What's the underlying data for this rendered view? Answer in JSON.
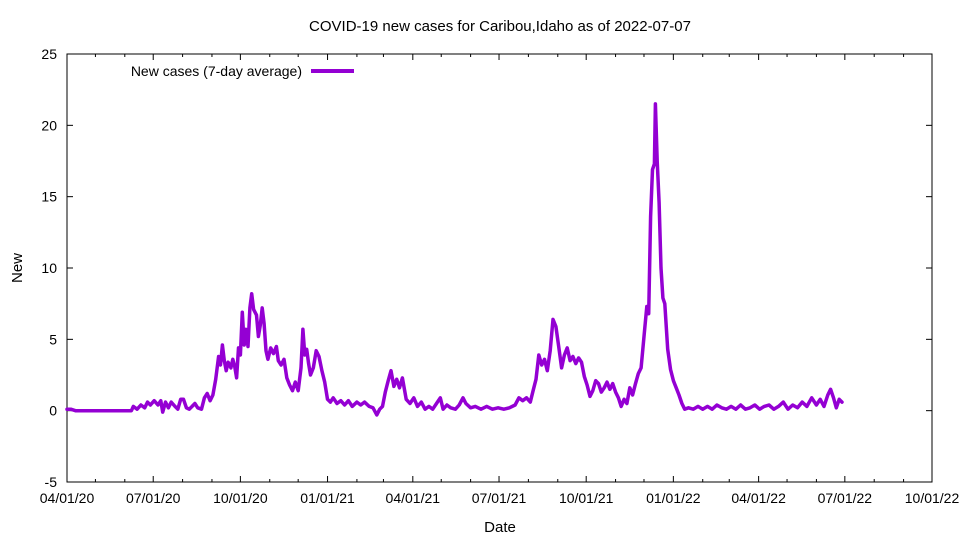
{
  "chart_data": {
    "type": "line",
    "title": "COVID-19 new cases for Caribou,Idaho as of 2022-07-07",
    "xlabel": "Date",
    "ylabel": "New",
    "xlim": [
      "2020-04-01",
      "2022-10-01"
    ],
    "ylim": [
      -5,
      25
    ],
    "x_tick_labels": [
      "04/01/20",
      "07/01/20",
      "10/01/20",
      "01/01/21",
      "04/01/21",
      "07/01/21",
      "10/01/21",
      "01/01/22",
      "04/01/22",
      "07/01/22",
      "10/01/22"
    ],
    "y_tick_labels": [
      "-5",
      "0",
      "5",
      "10",
      "15",
      "20",
      "25"
    ],
    "y_ticks": [
      -5,
      0,
      5,
      10,
      15,
      20,
      25
    ],
    "grid": false,
    "legend_position": "top-left",
    "series": [
      {
        "name": "New cases (7-day average)",
        "color": "#9400D3",
        "points": [
          [
            "2020-04-01",
            0.1
          ],
          [
            "2020-04-05",
            0.1
          ],
          [
            "2020-04-10",
            0
          ],
          [
            "2020-05-01",
            0
          ],
          [
            "2020-06-01",
            0
          ],
          [
            "2020-06-08",
            0
          ],
          [
            "2020-06-10",
            0.3
          ],
          [
            "2020-06-14",
            0.1
          ],
          [
            "2020-06-18",
            0.4
          ],
          [
            "2020-06-22",
            0.2
          ],
          [
            "2020-06-25",
            0.6
          ],
          [
            "2020-06-28",
            0.4
          ],
          [
            "2020-07-02",
            0.7
          ],
          [
            "2020-07-06",
            0.4
          ],
          [
            "2020-07-09",
            0.7
          ],
          [
            "2020-07-11",
            -0.1
          ],
          [
            "2020-07-14",
            0.6
          ],
          [
            "2020-07-17",
            0.2
          ],
          [
            "2020-07-20",
            0.6
          ],
          [
            "2020-07-24",
            0.3
          ],
          [
            "2020-07-27",
            0.1
          ],
          [
            "2020-07-30",
            0.8
          ],
          [
            "2020-08-02",
            0.8
          ],
          [
            "2020-08-05",
            0.2
          ],
          [
            "2020-08-08",
            0.1
          ],
          [
            "2020-08-11",
            0.3
          ],
          [
            "2020-08-14",
            0.5
          ],
          [
            "2020-08-17",
            0.2
          ],
          [
            "2020-08-21",
            0.1
          ],
          [
            "2020-08-24",
            0.9
          ],
          [
            "2020-08-27",
            1.2
          ],
          [
            "2020-08-30",
            0.7
          ],
          [
            "2020-09-02",
            1.1
          ],
          [
            "2020-09-05",
            2.2
          ],
          [
            "2020-09-08",
            3.8
          ],
          [
            "2020-09-10",
            3.2
          ],
          [
            "2020-09-12",
            4.6
          ],
          [
            "2020-09-14",
            3.5
          ],
          [
            "2020-09-16",
            2.8
          ],
          [
            "2020-09-18",
            3.4
          ],
          [
            "2020-09-21",
            3.0
          ],
          [
            "2020-09-23",
            3.6
          ],
          [
            "2020-09-25",
            3.1
          ],
          [
            "2020-09-27",
            2.3
          ],
          [
            "2020-09-29",
            4.4
          ],
          [
            "2020-10-01",
            3.9
          ],
          [
            "2020-10-03",
            6.9
          ],
          [
            "2020-10-05",
            4.6
          ],
          [
            "2020-10-07",
            5.7
          ],
          [
            "2020-10-09",
            4.5
          ],
          [
            "2020-10-11",
            7.2
          ],
          [
            "2020-10-13",
            8.2
          ],
          [
            "2020-10-15",
            7.1
          ],
          [
            "2020-10-18",
            6.7
          ],
          [
            "2020-10-20",
            5.2
          ],
          [
            "2020-10-22",
            6.0
          ],
          [
            "2020-10-24",
            7.2
          ],
          [
            "2020-10-26",
            6.1
          ],
          [
            "2020-10-28",
            4.2
          ],
          [
            "2020-10-30",
            3.6
          ],
          [
            "2020-11-02",
            4.4
          ],
          [
            "2020-11-05",
            4.0
          ],
          [
            "2020-11-08",
            4.5
          ],
          [
            "2020-11-10",
            3.5
          ],
          [
            "2020-11-13",
            3.2
          ],
          [
            "2020-11-16",
            3.6
          ],
          [
            "2020-11-19",
            2.3
          ],
          [
            "2020-11-22",
            1.8
          ],
          [
            "2020-11-25",
            1.4
          ],
          [
            "2020-11-28",
            2.0
          ],
          [
            "2020-12-01",
            1.4
          ],
          [
            "2020-12-04",
            3.0
          ],
          [
            "2020-12-06",
            5.7
          ],
          [
            "2020-12-08",
            3.9
          ],
          [
            "2020-12-10",
            4.3
          ],
          [
            "2020-12-12",
            3.3
          ],
          [
            "2020-12-14",
            2.5
          ],
          [
            "2020-12-17",
            3.0
          ],
          [
            "2020-12-20",
            4.2
          ],
          [
            "2020-12-23",
            3.8
          ],
          [
            "2020-12-26",
            2.8
          ],
          [
            "2020-12-29",
            2.0
          ],
          [
            "2021-01-01",
            0.8
          ],
          [
            "2021-01-04",
            0.6
          ],
          [
            "2021-01-07",
            0.9
          ],
          [
            "2021-01-11",
            0.5
          ],
          [
            "2021-01-15",
            0.7
          ],
          [
            "2021-01-19",
            0.4
          ],
          [
            "2021-01-23",
            0.7
          ],
          [
            "2021-01-27",
            0.3
          ],
          [
            "2021-02-01",
            0.6
          ],
          [
            "2021-02-05",
            0.4
          ],
          [
            "2021-02-09",
            0.6
          ],
          [
            "2021-02-14",
            0.3
          ],
          [
            "2021-02-18",
            0.2
          ],
          [
            "2021-02-22",
            -0.3
          ],
          [
            "2021-02-25",
            0.1
          ],
          [
            "2021-02-28",
            0.3
          ],
          [
            "2021-03-03",
            1.3
          ],
          [
            "2021-03-06",
            2.1
          ],
          [
            "2021-03-09",
            2.8
          ],
          [
            "2021-03-12",
            1.7
          ],
          [
            "2021-03-15",
            2.2
          ],
          [
            "2021-03-18",
            1.6
          ],
          [
            "2021-03-21",
            2.3
          ],
          [
            "2021-03-25",
            0.8
          ],
          [
            "2021-03-29",
            0.5
          ],
          [
            "2021-04-02",
            0.9
          ],
          [
            "2021-04-06",
            0.3
          ],
          [
            "2021-04-10",
            0.6
          ],
          [
            "2021-04-14",
            0.1
          ],
          [
            "2021-04-18",
            0.3
          ],
          [
            "2021-04-22",
            0.1
          ],
          [
            "2021-04-26",
            0.5
          ],
          [
            "2021-04-30",
            0.9
          ],
          [
            "2021-05-03",
            0.1
          ],
          [
            "2021-05-07",
            0.4
          ],
          [
            "2021-05-11",
            0.2
          ],
          [
            "2021-05-16",
            0.1
          ],
          [
            "2021-05-20",
            0.4
          ],
          [
            "2021-05-24",
            0.9
          ],
          [
            "2021-05-27",
            0.5
          ],
          [
            "2021-06-01",
            0.2
          ],
          [
            "2021-06-06",
            0.3
          ],
          [
            "2021-06-12",
            0.1
          ],
          [
            "2021-06-18",
            0.3
          ],
          [
            "2021-06-24",
            0.1
          ],
          [
            "2021-06-30",
            0.2
          ],
          [
            "2021-07-06",
            0.1
          ],
          [
            "2021-07-12",
            0.2
          ],
          [
            "2021-07-18",
            0.4
          ],
          [
            "2021-07-22",
            0.9
          ],
          [
            "2021-07-26",
            0.7
          ],
          [
            "2021-07-30",
            0.9
          ],
          [
            "2021-08-03",
            0.6
          ],
          [
            "2021-08-06",
            1.4
          ],
          [
            "2021-08-09",
            2.2
          ],
          [
            "2021-08-12",
            3.9
          ],
          [
            "2021-08-15",
            3.2
          ],
          [
            "2021-08-18",
            3.6
          ],
          [
            "2021-08-21",
            2.8
          ],
          [
            "2021-08-24",
            4.2
          ],
          [
            "2021-08-27",
            6.4
          ],
          [
            "2021-08-30",
            5.9
          ],
          [
            "2021-09-02",
            4.5
          ],
          [
            "2021-09-05",
            3.0
          ],
          [
            "2021-09-08",
            3.9
          ],
          [
            "2021-09-11",
            4.4
          ],
          [
            "2021-09-14",
            3.5
          ],
          [
            "2021-09-17",
            3.8
          ],
          [
            "2021-09-20",
            3.3
          ],
          [
            "2021-09-23",
            3.7
          ],
          [
            "2021-09-26",
            3.4
          ],
          [
            "2021-09-29",
            2.4
          ],
          [
            "2021-10-02",
            1.8
          ],
          [
            "2021-10-05",
            1.0
          ],
          [
            "2021-10-08",
            1.4
          ],
          [
            "2021-10-11",
            2.1
          ],
          [
            "2021-10-14",
            1.9
          ],
          [
            "2021-10-17",
            1.3
          ],
          [
            "2021-10-20",
            1.6
          ],
          [
            "2021-10-23",
            2.0
          ],
          [
            "2021-10-26",
            1.5
          ],
          [
            "2021-10-29",
            1.9
          ],
          [
            "2021-11-01",
            1.3
          ],
          [
            "2021-11-04",
            0.9
          ],
          [
            "2021-11-07",
            0.3
          ],
          [
            "2021-11-10",
            0.8
          ],
          [
            "2021-11-13",
            0.5
          ],
          [
            "2021-11-16",
            1.6
          ],
          [
            "2021-11-19",
            1.1
          ],
          [
            "2021-11-22",
            1.9
          ],
          [
            "2021-11-25",
            2.6
          ],
          [
            "2021-11-28",
            3.0
          ],
          [
            "2021-12-01",
            5.2
          ],
          [
            "2021-12-04",
            7.3
          ],
          [
            "2021-12-06",
            6.8
          ],
          [
            "2021-12-08",
            13.6
          ],
          [
            "2021-12-10",
            16.9
          ],
          [
            "2021-12-12",
            17.3
          ],
          [
            "2021-12-13",
            21.5
          ],
          [
            "2021-12-15",
            17.5
          ],
          [
            "2021-12-17",
            14.6
          ],
          [
            "2021-12-19",
            10.0
          ],
          [
            "2021-12-21",
            7.9
          ],
          [
            "2021-12-23",
            7.5
          ],
          [
            "2021-12-26",
            4.3
          ],
          [
            "2021-12-29",
            2.9
          ],
          [
            "2022-01-01",
            2.1
          ],
          [
            "2022-01-04",
            1.6
          ],
          [
            "2022-01-07",
            1.1
          ],
          [
            "2022-01-10",
            0.5
          ],
          [
            "2022-01-13",
            0.1
          ],
          [
            "2022-01-17",
            0.2
          ],
          [
            "2022-01-22",
            0.1
          ],
          [
            "2022-01-27",
            0.3
          ],
          [
            "2022-02-01",
            0.1
          ],
          [
            "2022-02-06",
            0.3
          ],
          [
            "2022-02-11",
            0.1
          ],
          [
            "2022-02-16",
            0.4
          ],
          [
            "2022-02-21",
            0.2
          ],
          [
            "2022-02-26",
            0.1
          ],
          [
            "2022-03-03",
            0.3
          ],
          [
            "2022-03-08",
            0.1
          ],
          [
            "2022-03-13",
            0.4
          ],
          [
            "2022-03-18",
            0.1
          ],
          [
            "2022-03-23",
            0.2
          ],
          [
            "2022-03-28",
            0.4
          ],
          [
            "2022-04-02",
            0.1
          ],
          [
            "2022-04-07",
            0.3
          ],
          [
            "2022-04-12",
            0.4
          ],
          [
            "2022-04-17",
            0.1
          ],
          [
            "2022-04-22",
            0.3
          ],
          [
            "2022-04-27",
            0.6
          ],
          [
            "2022-05-02",
            0.1
          ],
          [
            "2022-05-07",
            0.4
          ],
          [
            "2022-05-12",
            0.2
          ],
          [
            "2022-05-17",
            0.6
          ],
          [
            "2022-05-22",
            0.3
          ],
          [
            "2022-05-27",
            0.9
          ],
          [
            "2022-06-01",
            0.4
          ],
          [
            "2022-06-05",
            0.8
          ],
          [
            "2022-06-09",
            0.3
          ],
          [
            "2022-06-13",
            1.1
          ],
          [
            "2022-06-16",
            1.5
          ],
          [
            "2022-06-19",
            0.9
          ],
          [
            "2022-06-22",
            0.2
          ],
          [
            "2022-06-25",
            0.8
          ],
          [
            "2022-06-28",
            0.6
          ]
        ]
      }
    ]
  }
}
